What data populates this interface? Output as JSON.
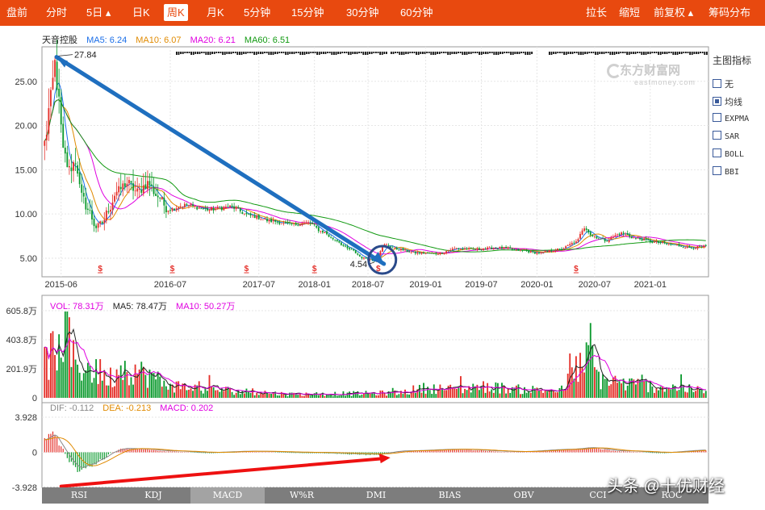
{
  "toolbar": {
    "tabs": [
      {
        "label": "盘前"
      },
      {
        "label": "分时"
      },
      {
        "label": "5日 ▴"
      },
      {
        "label": "日K"
      },
      {
        "label": "周K",
        "active": true
      },
      {
        "label": "月K"
      },
      {
        "label": "5分钟"
      },
      {
        "label": "15分钟"
      },
      {
        "label": "30分钟"
      },
      {
        "label": "60分钟"
      }
    ],
    "right": [
      {
        "label": "拉长"
      },
      {
        "label": "缩短"
      },
      {
        "label": "前复权 ▴"
      },
      {
        "label": "筹码分布"
      }
    ]
  },
  "main_legend": {
    "name": "天音控股",
    "items": [
      {
        "label": "MA5: 6.24",
        "color": "#1a6ee8"
      },
      {
        "label": "MA10: 6.07",
        "color": "#e08a00"
      },
      {
        "label": "MA20: 6.21",
        "color": "#e000e0"
      },
      {
        "label": "MA60: 6.51",
        "color": "#129a12"
      }
    ]
  },
  "vol_legend": {
    "items": [
      {
        "label": "VOL: 78.31万",
        "color": "#e000e0"
      },
      {
        "label": "MA5: 78.47万",
        "color": "#222222"
      },
      {
        "label": "MA10: 50.27万",
        "color": "#e000e0"
      }
    ]
  },
  "macd_legend": {
    "items": [
      {
        "label": "DIF: -0.112",
        "color": "#888888"
      },
      {
        "label": "DEA: -0.213",
        "color": "#e08a00"
      },
      {
        "label": "MACD: 0.202",
        "color": "#e000e0"
      }
    ]
  },
  "side_panel": {
    "title": "主图指标",
    "options": [
      {
        "label": "无",
        "checked": false
      },
      {
        "label": "均线",
        "checked": true
      },
      {
        "label": "EXPMA",
        "checked": false
      },
      {
        "label": "SAR",
        "checked": false
      },
      {
        "label": "BOLL",
        "checked": false
      },
      {
        "label": "BBI",
        "checked": false
      }
    ]
  },
  "indicator_tabs": [
    {
      "label": "RSI"
    },
    {
      "label": "KDJ"
    },
    {
      "label": "MACD",
      "active": true
    },
    {
      "label": "W%R"
    },
    {
      "label": "DMI"
    },
    {
      "label": "BIAS"
    },
    {
      "label": "OBV"
    },
    {
      "label": "CCI"
    },
    {
      "label": "ROC"
    }
  ],
  "logo": {
    "cn": "东方财富网",
    "en": "eastmoney.com"
  },
  "watermark": "头条 @十优财经",
  "colors": {
    "up": "#e5302a",
    "down": "#0c9a2e",
    "accent": "#e8490f",
    "arrow_blue": "#1f6fbf",
    "arrow_red": "#ee1111",
    "circle": "#2a4a8a"
  },
  "chart_data": [
    {
      "type": "candlestick",
      "panel": "price",
      "title": "天音控股",
      "y_ticks": [
        5.0,
        10.0,
        15.0,
        20.0,
        25.0
      ],
      "y_tick_labels": [
        "5.00",
        "10.00",
        "15.00",
        "20.00",
        "25.00"
      ],
      "ylim": [
        2.9,
        28.9
      ],
      "x_tick_labels": [
        "2015-06",
        "2016-07",
        "2017-07",
        "2018-01",
        "2018-07",
        "2019-01",
        "2019-07",
        "2020-01",
        "2020-07",
        "2021-01"
      ],
      "x_tick_index": [
        8,
        61,
        104,
        131,
        157,
        185,
        212,
        239,
        267,
        294
      ],
      "n_weeks": 322,
      "anchors": [
        {
          "i": 0,
          "p": 18
        },
        {
          "i": 3,
          "p": 23
        },
        {
          "i": 5,
          "p": 27
        },
        {
          "i": 7,
          "p": 22.5
        },
        {
          "i": 9,
          "p": 17
        },
        {
          "i": 12,
          "p": 15
        },
        {
          "i": 15,
          "p": 16
        },
        {
          "i": 18,
          "p": 12
        },
        {
          "i": 21,
          "p": 10.5
        },
        {
          "i": 25,
          "p": 8.5
        },
        {
          "i": 28,
          "p": 9
        },
        {
          "i": 31,
          "p": 10.5
        },
        {
          "i": 35,
          "p": 12.5
        },
        {
          "i": 40,
          "p": 13.5
        },
        {
          "i": 45,
          "p": 12.5
        },
        {
          "i": 50,
          "p": 13.5
        },
        {
          "i": 55,
          "p": 12
        },
        {
          "i": 60,
          "p": 10.5
        },
        {
          "i": 68,
          "p": 11
        },
        {
          "i": 80,
          "p": 10.5
        },
        {
          "i": 90,
          "p": 10.8
        },
        {
          "i": 100,
          "p": 9.8
        },
        {
          "i": 110,
          "p": 9.2
        },
        {
          "i": 120,
          "p": 8.8
        },
        {
          "i": 128,
          "p": 9
        },
        {
          "i": 135,
          "p": 8
        },
        {
          "i": 140,
          "p": 7.2
        },
        {
          "i": 148,
          "p": 6
        },
        {
          "i": 155,
          "p": 5
        },
        {
          "i": 160,
          "p": 4.8
        },
        {
          "i": 165,
          "p": 6.5
        },
        {
          "i": 172,
          "p": 6
        },
        {
          "i": 180,
          "p": 5.6
        },
        {
          "i": 190,
          "p": 5.5
        },
        {
          "i": 200,
          "p": 6.1
        },
        {
          "i": 210,
          "p": 6
        },
        {
          "i": 220,
          "p": 6.2
        },
        {
          "i": 230,
          "p": 5.9
        },
        {
          "i": 240,
          "p": 5.6
        },
        {
          "i": 250,
          "p": 6
        },
        {
          "i": 258,
          "p": 6.8
        },
        {
          "i": 262,
          "p": 8.5
        },
        {
          "i": 266,
          "p": 7.5
        },
        {
          "i": 272,
          "p": 7
        },
        {
          "i": 280,
          "p": 7.8
        },
        {
          "i": 288,
          "p": 7.2
        },
        {
          "i": 296,
          "p": 6.8
        },
        {
          "i": 305,
          "p": 6.5
        },
        {
          "i": 314,
          "p": 6.2
        },
        {
          "i": 321,
          "p": 6.3
        }
      ],
      "annotations": [
        {
          "label": "27.84",
          "i": 5,
          "price": 27.84
        },
        {
          "label": "4.54",
          "i": 160,
          "price": 4.54
        }
      ],
      "dividend_marks_index": [
        27,
        62,
        98,
        131,
        162,
        258
      ]
    },
    {
      "type": "bar",
      "panel": "volume",
      "y_ticks": [
        0,
        201.9,
        403.8,
        605.8
      ],
      "y_tick_labels": [
        "0",
        "201.9万",
        "403.8万",
        "605.8万"
      ],
      "ylim": [
        0,
        605.8
      ],
      "anchors": [
        {
          "i": 0,
          "v": 300
        },
        {
          "i": 5,
          "v": 380
        },
        {
          "i": 12,
          "v": 320
        },
        {
          "i": 20,
          "v": 250
        },
        {
          "i": 30,
          "v": 160
        },
        {
          "i": 40,
          "v": 250
        },
        {
          "i": 50,
          "v": 190
        },
        {
          "i": 60,
          "v": 100
        },
        {
          "i": 80,
          "v": 70
        },
        {
          "i": 100,
          "v": 50
        },
        {
          "i": 120,
          "v": 30
        },
        {
          "i": 150,
          "v": 35
        },
        {
          "i": 170,
          "v": 40
        },
        {
          "i": 185,
          "v": 80
        },
        {
          "i": 200,
          "v": 70
        },
        {
          "i": 215,
          "v": 90
        },
        {
          "i": 230,
          "v": 70
        },
        {
          "i": 250,
          "v": 60
        },
        {
          "i": 260,
          "v": 260
        },
        {
          "i": 265,
          "v": 320
        },
        {
          "i": 270,
          "v": 150
        },
        {
          "i": 285,
          "v": 110
        },
        {
          "i": 300,
          "v": 90
        },
        {
          "i": 321,
          "v": 60
        }
      ]
    },
    {
      "type": "bar",
      "panel": "macd",
      "y_ticks": [
        -3.928,
        0,
        3.928
      ],
      "y_tick_labels": [
        "-3.928",
        "0",
        "3.928"
      ],
      "ylim": [
        -3.928,
        3.928
      ],
      "anchors": [
        {
          "i": 0,
          "v": 1.5
        },
        {
          "i": 4,
          "v": 2.3
        },
        {
          "i": 8,
          "v": 0.6
        },
        {
          "i": 12,
          "v": -1
        },
        {
          "i": 16,
          "v": -2.1
        },
        {
          "i": 22,
          "v": -1.6
        },
        {
          "i": 28,
          "v": -0.8
        },
        {
          "i": 33,
          "v": 0
        },
        {
          "i": 38,
          "v": 0.4
        },
        {
          "i": 48,
          "v": 0.35
        },
        {
          "i": 60,
          "v": 0.1
        },
        {
          "i": 80,
          "v": -0.1
        },
        {
          "i": 100,
          "v": 0.05
        },
        {
          "i": 130,
          "v": -0.1
        },
        {
          "i": 160,
          "v": -0.3
        },
        {
          "i": 175,
          "v": 0.1
        },
        {
          "i": 200,
          "v": 0.3
        },
        {
          "i": 230,
          "v": 0
        },
        {
          "i": 255,
          "v": 0.3
        },
        {
          "i": 265,
          "v": 0.5
        },
        {
          "i": 280,
          "v": 0.1
        },
        {
          "i": 300,
          "v": -0.1
        },
        {
          "i": 321,
          "v": 0.2
        }
      ]
    }
  ]
}
